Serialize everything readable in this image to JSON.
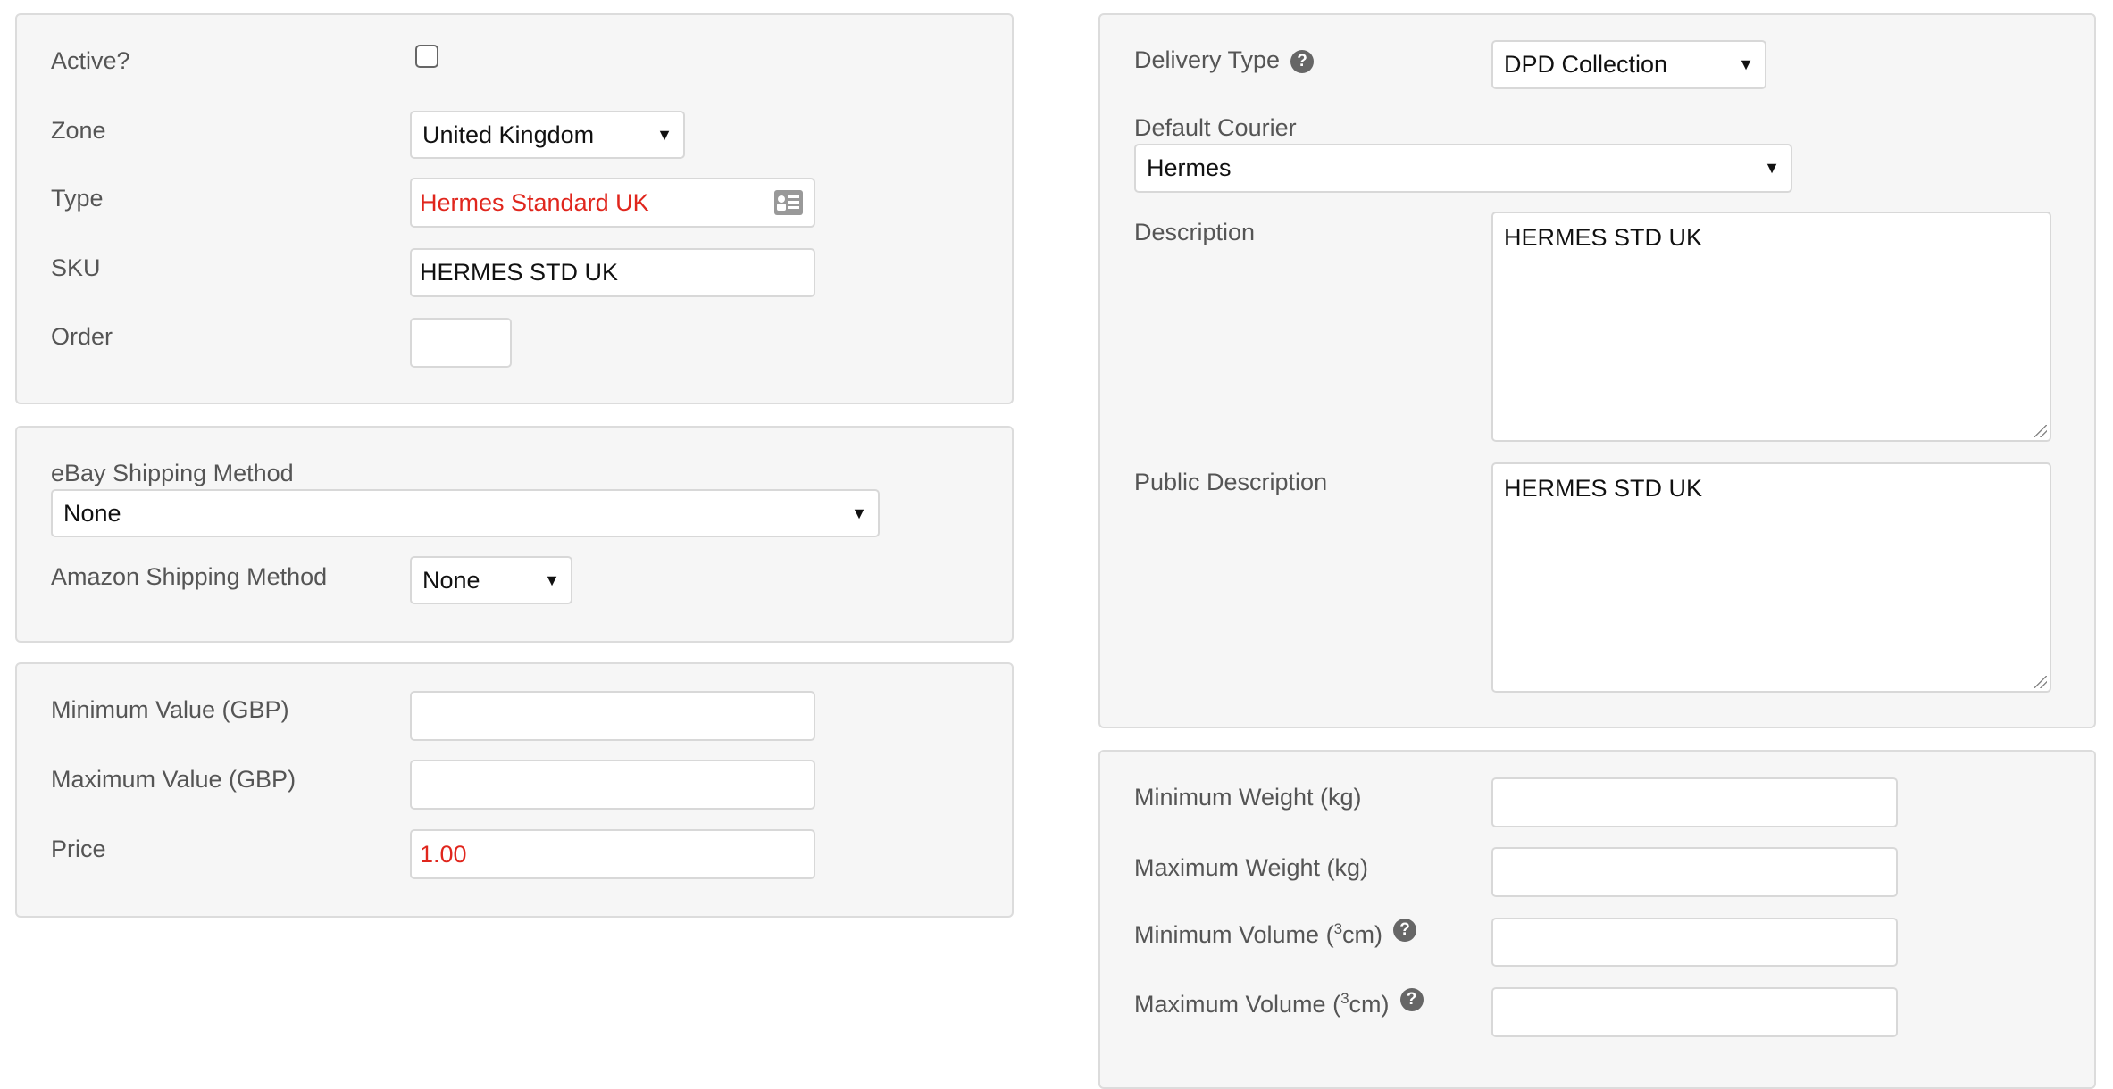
{
  "general": {
    "active_label": "Active?",
    "active_checked": false,
    "zone_label": "Zone",
    "zone_value": "United Kingdom",
    "type_label": "Type",
    "type_value": "Hermes Standard UK",
    "sku_label": "SKU",
    "sku_value": "HERMES STD UK",
    "order_label": "Order",
    "order_value": ""
  },
  "shipping": {
    "ebay_label": "eBay Shipping Method",
    "ebay_value": "None",
    "amazon_label": "Amazon Shipping Method",
    "amazon_value": "None"
  },
  "pricing": {
    "min_label": "Minimum Value (GBP)",
    "min_value": "",
    "max_label": "Maximum Value (GBP)",
    "max_value": "",
    "price_label": "Price",
    "price_value": "1.00"
  },
  "delivery": {
    "type_label": "Delivery Type",
    "type_value": "DPD Collection",
    "courier_label": "Default Courier",
    "courier_value": "Hermes",
    "description_label": "Description",
    "description_value": "HERMES STD UK",
    "public_label": "Public Description",
    "public_value": "HERMES STD UK"
  },
  "limits": {
    "min_weight_label": "Minimum Weight (kg)",
    "max_weight_label": "Maximum Weight (kg)",
    "min_volume_label_pre": "Minimum Volume (",
    "max_volume_label_pre": "Maximum Volume (",
    "volume_sup": "3",
    "volume_unit": "cm)"
  },
  "colors": {
    "error_text": "#e0261d",
    "panel_bg": "#f6f6f6"
  },
  "icons": {
    "dropdown": "▼",
    "help": "?"
  }
}
